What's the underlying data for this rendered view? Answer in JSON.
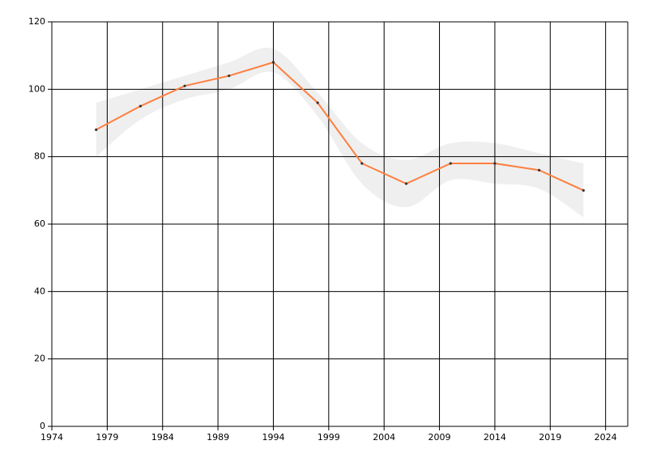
{
  "chart_data": {
    "type": "line",
    "x": [
      1978,
      1982,
      1986,
      1990,
      1994,
      1998,
      2002,
      2006,
      2010,
      2014,
      2018,
      2022
    ],
    "series": [
      {
        "color": "#ff7f3f",
        "values": [
          88,
          95,
          101,
          104,
          108,
          96,
          78,
          72,
          78,
          78,
          76,
          70
        ]
      }
    ],
    "band": {
      "color": "#efefef",
      "upper": [
        96,
        100,
        104,
        108,
        112,
        99,
        84,
        79,
        84,
        84,
        81,
        78
      ],
      "lower": [
        80,
        91,
        97,
        100,
        105,
        92,
        72,
        65,
        73,
        72,
        70.5,
        62
      ]
    },
    "xlim": [
      1974,
      2026
    ],
    "xticks": [
      1974,
      1979,
      1984,
      1989,
      1994,
      1999,
      2004,
      2009,
      2014,
      2019,
      2024
    ],
    "ylim": [
      0,
      120
    ],
    "yticks": [
      0,
      20,
      40,
      60,
      80,
      100,
      120
    ],
    "grid": true
  }
}
